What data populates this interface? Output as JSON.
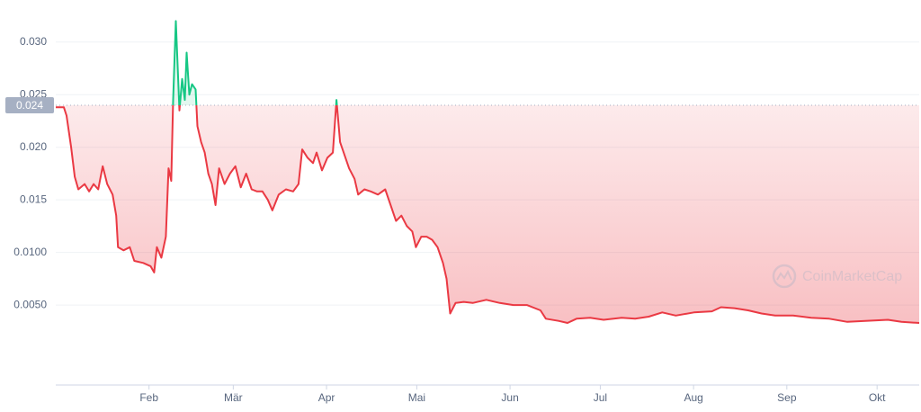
{
  "chart_data": {
    "type": "line",
    "x": [
      0,
      2.7,
      3.6,
      5.1,
      6.3,
      7.5,
      9.6,
      11.1,
      12.6,
      14.1,
      15.6,
      17.1,
      18.9,
      20.1,
      20.7,
      22.5,
      24.6,
      26.1,
      29.1,
      31.5,
      32.7,
      33.6,
      35.1,
      36.6,
      37.5,
      38.4,
      39,
      39.9,
      41.1,
      42,
      42.9,
      43.5,
      44.4,
      45.3,
      46.5,
      47.1,
      48.3,
      49.5,
      50.7,
      51.9,
      53.1,
      54.3,
      56.1,
      57.9,
      59.7,
      61.5,
      63.3,
      65.1,
      66.9,
      68.7,
      70.5,
      72,
      74.1,
      76.5,
      78.9,
      80.7,
      81.9,
      83.7,
      85.5,
      86.7,
      88.5,
      90.3,
      92.1,
      93.3,
      94.5,
      95.7,
      97.5,
      99.3,
      100.5,
      102.6,
      104.7,
      107.1,
      109.5,
      111.3,
      113.1,
      114.9,
      116.7,
      118.5,
      119.7,
      121.5,
      123.3,
      125.1,
      126.9,
      128.7,
      129.9,
      131.1,
      132.9,
      135.6,
      138.6,
      143.1,
      147.6,
      152.1,
      156.6,
      161.1,
      162.9,
      167.1,
      170.1,
      173.1,
      177.6,
      182.1,
      188.1,
      192.6,
      197.1,
      201.6,
      206.1,
      212.1,
      218.1,
      221.1,
      225.6,
      230.1,
      234.6,
      239.1,
      245.1,
      251.1,
      257.1,
      263.1,
      269.1,
      276.6,
      281.1,
      287
    ],
    "values": [
      0.0238,
      0.0238,
      0.023,
      0.02,
      0.0172,
      0.016,
      0.0165,
      0.0158,
      0.0165,
      0.016,
      0.0182,
      0.0165,
      0.0155,
      0.0135,
      0.0105,
      0.0102,
      0.0105,
      0.0092,
      0.009,
      0.0087,
      0.0081,
      0.0105,
      0.0095,
      0.0115,
      0.018,
      0.0168,
      0.0245,
      0.032,
      0.0235,
      0.0265,
      0.0245,
      0.029,
      0.025,
      0.026,
      0.0255,
      0.022,
      0.0205,
      0.0195,
      0.0175,
      0.0165,
      0.0145,
      0.018,
      0.0165,
      0.0175,
      0.0182,
      0.0162,
      0.0175,
      0.016,
      0.0158,
      0.0158,
      0.015,
      0.014,
      0.0155,
      0.016,
      0.0158,
      0.0165,
      0.0198,
      0.019,
      0.0185,
      0.0195,
      0.0178,
      0.019,
      0.0195,
      0.0245,
      0.0205,
      0.0195,
      0.018,
      0.017,
      0.0155,
      0.016,
      0.0158,
      0.0155,
      0.016,
      0.0145,
      0.013,
      0.0135,
      0.0125,
      0.012,
      0.0105,
      0.0115,
      0.0115,
      0.0112,
      0.0105,
      0.009,
      0.0075,
      0.0042,
      0.0052,
      0.0053,
      0.0052,
      0.0055,
      0.0052,
      0.005,
      0.005,
      0.0045,
      0.0037,
      0.0035,
      0.0033,
      0.0037,
      0.0038,
      0.0036,
      0.0038,
      0.0037,
      0.0039,
      0.0043,
      0.004,
      0.0043,
      0.0044,
      0.0048,
      0.0047,
      0.0045,
      0.0042,
      0.004,
      0.004,
      0.0038,
      0.0037,
      0.0034,
      0.0035,
      0.0036,
      0.0034,
      0.0033
    ],
    "color_below": "#ea3943",
    "color_above": "#16c784",
    "reference_value": 0.024,
    "xlim": [
      0,
      287
    ],
    "xticks": [
      {
        "value": 31,
        "label": "Feb"
      },
      {
        "value": 59,
        "label": "Mär"
      },
      {
        "value": 90,
        "label": "Apr"
      },
      {
        "value": 120,
        "label": "Mai"
      },
      {
        "value": 151,
        "label": "Jun"
      },
      {
        "value": 181,
        "label": "Jul"
      },
      {
        "value": 212,
        "label": "Aug"
      },
      {
        "value": 243,
        "label": "Sep"
      },
      {
        "value": 273,
        "label": "Okt"
      }
    ],
    "ylim": [
      -0.0026,
      0.034
    ],
    "yticks": [
      {
        "value": 0.005,
        "label": "0.0050"
      },
      {
        "value": 0.01,
        "label": "0.0100"
      },
      0.015,
      {
        "value": 0.02,
        "label": "0.020"
      },
      0.025,
      {
        "value": 0.03,
        "label": "0.030"
      }
    ],
    "grid": true,
    "watermark": "CoinMarketCap"
  }
}
